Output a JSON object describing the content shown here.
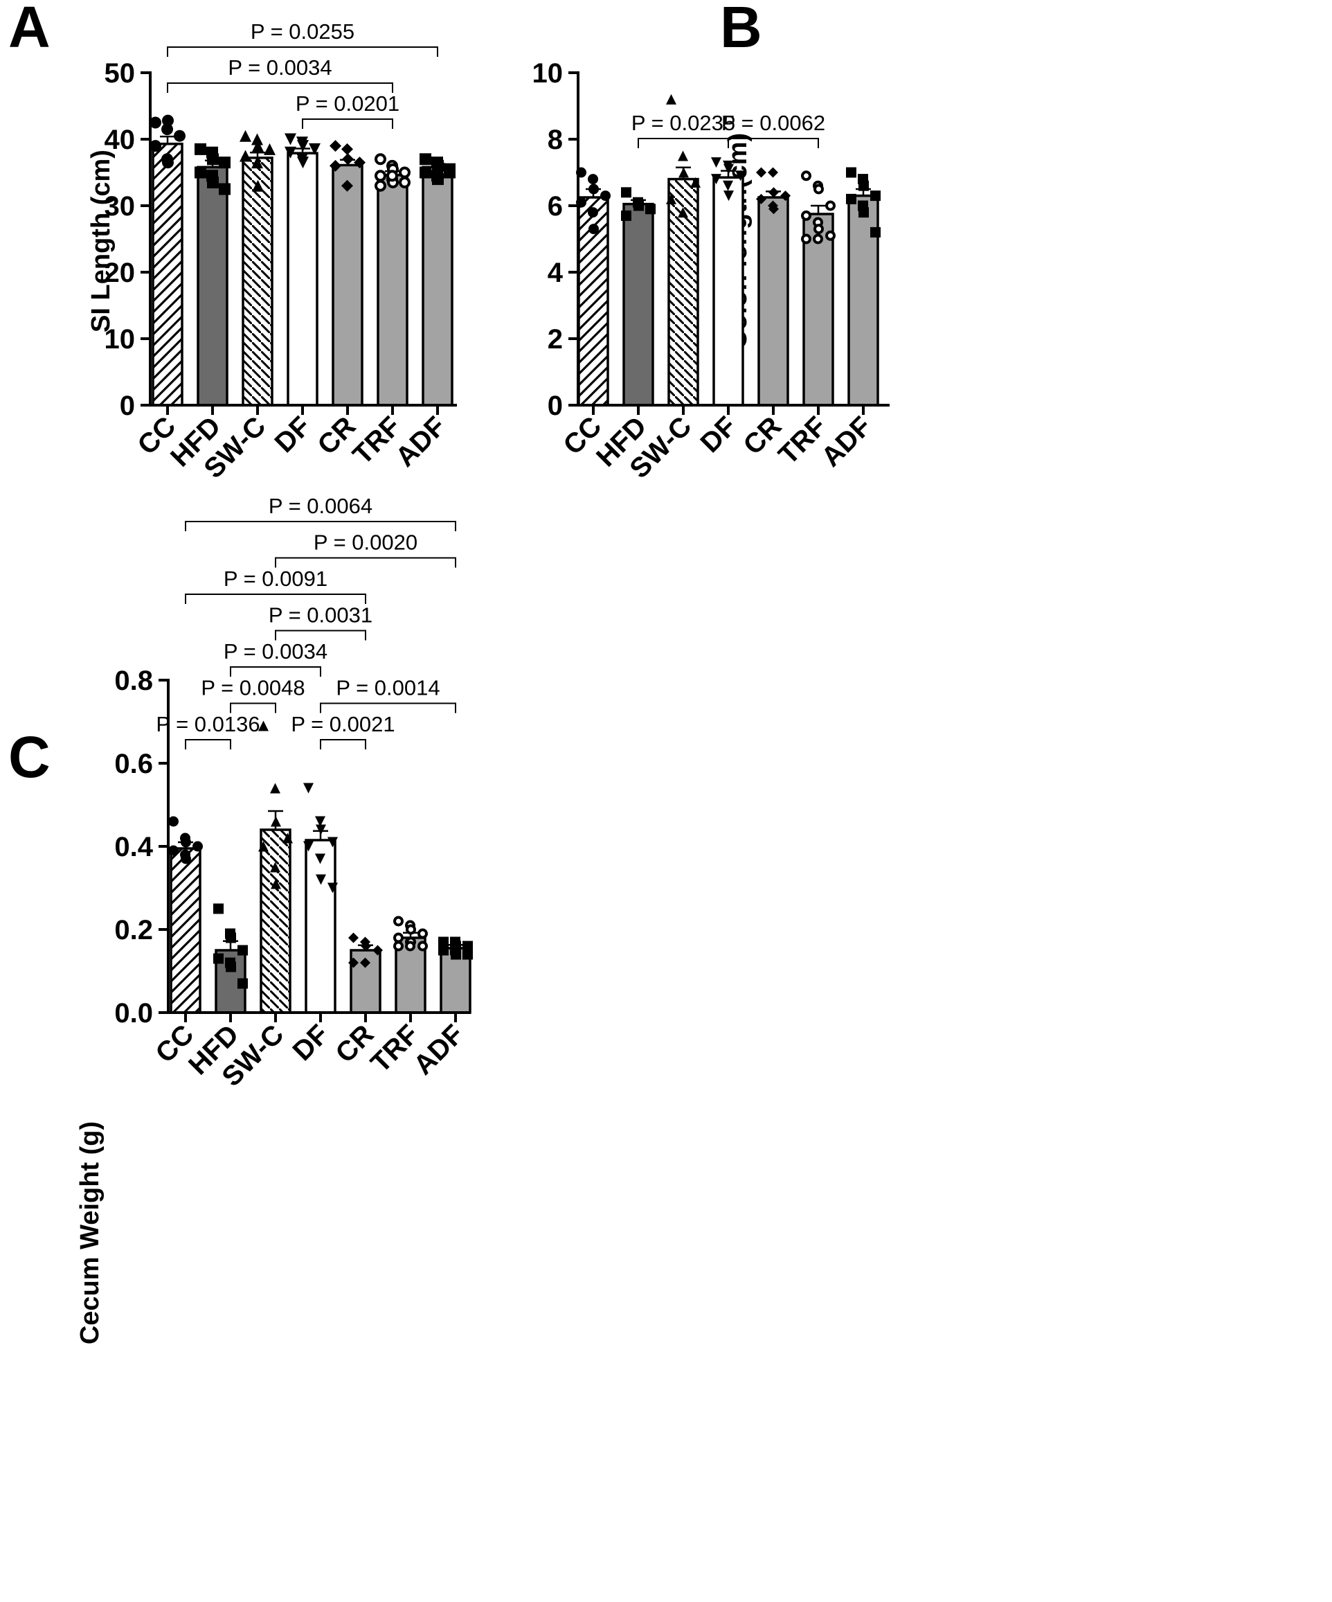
{
  "colors": {
    "dark_gray": "#6b6b6b",
    "light_gray": "#a3a3a3",
    "white": "#ffffff",
    "black": "#000000"
  },
  "chart_data": [
    {
      "panel": "A",
      "type": "bar",
      "ylabel": "SI Length (cm)",
      "ylim": [
        0,
        50
      ],
      "yticks": [
        "0",
        "10",
        "20",
        "30",
        "40",
        "50"
      ],
      "categories": [
        "CC",
        "HFD",
        "SW-C",
        "DF",
        "CR",
        "TRF",
        "ADF"
      ],
      "values": [
        39.3,
        35.8,
        37.2,
        37.9,
        36.1,
        34.6,
        35.8
      ],
      "errors": [
        1.1,
        1.0,
        0.8,
        0.7,
        0.8,
        0.6,
        0.5
      ],
      "fills": [
        "hatch",
        "dark",
        "hatch-rev",
        "white",
        "light",
        "light",
        "light"
      ],
      "markers": [
        "circle",
        "square",
        "triangle",
        "triangle-down",
        "diamond",
        "circle-open",
        "square"
      ],
      "points": [
        [
          42.5,
          41.5,
          42.8,
          40.5,
          39.0,
          37.0,
          36.5
        ],
        [
          38.5,
          38.0,
          37.0,
          36.5,
          35.0,
          34.5,
          33.5,
          32.5
        ],
        [
          40.5,
          40.0,
          39.0,
          38.5,
          37.5,
          36.5,
          33.0
        ],
        [
          40.0,
          39.5,
          39.0,
          38.5,
          38.0,
          37.0,
          36.5
        ],
        [
          39.0,
          38.5,
          37.0,
          36.5,
          36.0,
          33.0
        ],
        [
          37.0,
          36.0,
          35.5,
          35.0,
          34.5,
          34.0,
          33.5,
          33.5,
          33.0,
          34.5
        ],
        [
          37.0,
          36.5,
          36.0,
          35.5,
          35.0,
          34.5,
          34.0,
          35.0
        ]
      ],
      "comparisons": [
        {
          "from": "CC",
          "to": "ADF",
          "label": "P = 0.0255"
        },
        {
          "from": "CC",
          "to": "TRF",
          "label": "P = 0.0034"
        },
        {
          "from": "DF",
          "to": "TRF",
          "label": "P = 0.0201"
        }
      ]
    },
    {
      "panel": "B",
      "type": "bar",
      "ylabel": "Colon length(cm)",
      "ylim": [
        0,
        10
      ],
      "yticks": [
        "0",
        "2",
        "4",
        "6",
        "8",
        "10"
      ],
      "categories": [
        "CC",
        "HFD",
        "SW-C",
        "DF",
        "CR",
        "TRF",
        "ADF"
      ],
      "values": [
        6.25,
        6.05,
        6.8,
        6.85,
        6.25,
        5.75,
        6.3
      ],
      "errors": [
        0.25,
        0.12,
        0.35,
        0.2,
        0.18,
        0.25,
        0.2
      ],
      "fills": [
        "hatch",
        "dark",
        "hatch-rev",
        "white",
        "light",
        "light",
        "light"
      ],
      "markers": [
        "circle",
        "square",
        "triangle",
        "triangle-down",
        "diamond",
        "circle-open",
        "square"
      ],
      "points": [
        [
          7.0,
          6.8,
          6.5,
          6.3,
          6.1,
          5.8,
          5.3
        ],
        [
          6.4,
          6.1,
          6.0,
          5.9,
          5.7
        ],
        [
          9.2,
          7.5,
          7.0,
          6.7,
          6.2,
          5.8
        ],
        [
          7.3,
          7.2,
          7.1,
          6.9,
          6.8,
          6.6,
          6.3
        ],
        [
          7.0,
          7.0,
          6.4,
          6.3,
          6.2,
          6.0,
          5.9
        ],
        [
          6.9,
          6.6,
          6.5,
          6.0,
          5.7,
          5.5,
          5.3,
          5.1,
          5.0,
          5.0
        ],
        [
          7.0,
          6.8,
          6.6,
          6.3,
          6.2,
          6.0,
          5.8,
          5.2
        ]
      ],
      "comparisons": [
        {
          "from": "HFD",
          "to": "DF",
          "label": "P = 0.0235"
        },
        {
          "from": "DF",
          "to": "TRF",
          "label": "P = 0.0062"
        }
      ]
    },
    {
      "panel": "C",
      "type": "bar",
      "ylabel": "Cecum Weight (g)",
      "ylim": [
        0,
        0.8
      ],
      "yticks": [
        "0.0",
        "0.2",
        "0.4",
        "0.6",
        "0.8"
      ],
      "categories": [
        "CC",
        "HFD",
        "SW-C",
        "DF",
        "CR",
        "TRF",
        "ADF"
      ],
      "values": [
        0.395,
        0.15,
        0.44,
        0.415,
        0.15,
        0.18,
        0.155
      ],
      "errors": [
        0.015,
        0.022,
        0.045,
        0.022,
        0.012,
        0.012,
        0.008
      ],
      "fills": [
        "hatch",
        "dark",
        "hatch-rev",
        "white",
        "light",
        "light",
        "light"
      ],
      "markers": [
        "circle",
        "square",
        "triangle",
        "triangle-down",
        "diamond",
        "circle-open",
        "square"
      ],
      "points": [
        [
          0.46,
          0.42,
          0.41,
          0.4,
          0.39,
          0.38,
          0.37
        ],
        [
          0.25,
          0.19,
          0.18,
          0.15,
          0.13,
          0.12,
          0.11,
          0.07
        ],
        [
          0.69,
          0.54,
          0.46,
          0.42,
          0.4,
          0.35,
          0.31
        ],
        [
          0.54,
          0.46,
          0.44,
          0.41,
          0.4,
          0.37,
          0.32,
          0.3
        ],
        [
          0.18,
          0.17,
          0.16,
          0.15,
          0.12,
          0.12
        ],
        [
          0.22,
          0.21,
          0.2,
          0.19,
          0.18,
          0.17,
          0.17,
          0.16,
          0.16,
          0.16
        ],
        [
          0.17,
          0.17,
          0.16,
          0.16,
          0.15,
          0.15,
          0.14,
          0.14
        ]
      ],
      "comparisons": [
        {
          "from": "CC",
          "to": "ADF",
          "label": "P = 0.0064"
        },
        {
          "from": "SW-C",
          "to": "ADF",
          "label": "P = 0.0020"
        },
        {
          "from": "CC",
          "to": "CR",
          "label": "P = 0.0091"
        },
        {
          "from": "SW-C",
          "to": "CR",
          "label": "P = 0.0031"
        },
        {
          "from": "HFD",
          "to": "DF",
          "label": "P = 0.0034"
        },
        {
          "from": "HFD",
          "to": "SW-C",
          "label": "P = 0.0048"
        },
        {
          "from": "DF",
          "to": "ADF",
          "label": "P = 0.0014"
        },
        {
          "from": "CC",
          "to": "HFD",
          "label": "P = 0.0136"
        },
        {
          "from": "DF",
          "to": "CR",
          "label": "P = 0.0021"
        }
      ]
    }
  ]
}
